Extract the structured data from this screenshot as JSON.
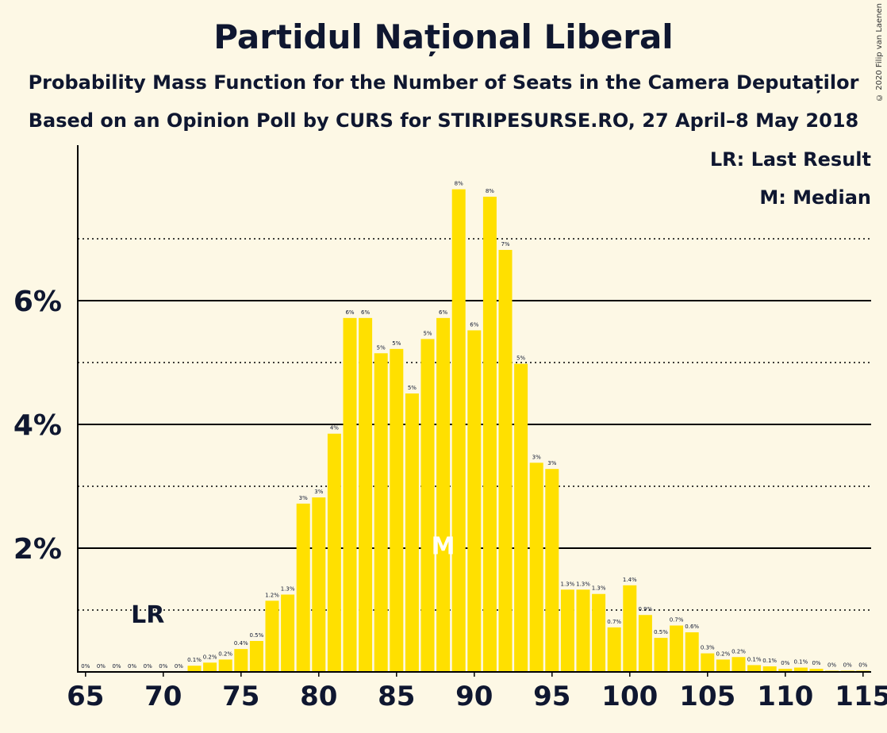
{
  "title": "Partidul Național Liberal",
  "subtitle": "Probability Mass Function for the Number of Seats in the Camera Deputaților",
  "subtitle2": "Based on an Opinion Poll by CURS for STIRIPESURSE.RO, 27 April–8 May 2018",
  "copyright": "© 2020 Filip van Laenen",
  "legend": {
    "lr": "LR: Last Result",
    "m": "M: Median"
  },
  "colors": {
    "bar": "#ffe000",
    "text": "#0f1730",
    "background": "#fdf8e5"
  },
  "chart_data": {
    "type": "bar",
    "x": [
      65,
      66,
      67,
      68,
      69,
      70,
      71,
      72,
      73,
      74,
      75,
      76,
      77,
      78,
      79,
      80,
      81,
      82,
      83,
      84,
      85,
      86,
      87,
      88,
      89,
      90,
      91,
      92,
      93,
      94,
      95,
      96,
      97,
      98,
      99,
      100,
      101,
      102,
      103,
      104,
      105,
      106,
      107,
      108,
      109,
      110,
      111,
      112,
      113,
      114,
      115
    ],
    "values": [
      0,
      0,
      0,
      0,
      0,
      0,
      0,
      0.1,
      0.15,
      0.2,
      0.37,
      0.5,
      1.15,
      1.25,
      2.72,
      2.82,
      3.85,
      5.72,
      5.72,
      5.15,
      5.22,
      4.5,
      5.38,
      5.72,
      7.8,
      5.52,
      7.68,
      6.82,
      4.98,
      3.38,
      3.28,
      1.33,
      1.33,
      1.26,
      0.72,
      1.4,
      0.92,
      0.55,
      0.75,
      0.64,
      0.3,
      0.2,
      0.24,
      0.11,
      0.09,
      0.05,
      0.07,
      0.05,
      0.02,
      0.02,
      0.02
    ],
    "data_labels": [
      "0%",
      "0%",
      "0%",
      "0%",
      "0%",
      "0%",
      "0%",
      "0.1%",
      "0.2%",
      "0.2%",
      "0.4%",
      "0.5%",
      "1.2%",
      "1.3%",
      "3%",
      "3%",
      "4%",
      "6%",
      "6%",
      "5%",
      "5%",
      "5%",
      "5%",
      "6%",
      "8%",
      "6%",
      "8%",
      "7%",
      "5%",
      "3%",
      "3%",
      "1.3%",
      "1.3%",
      "1.3%",
      "0.7%",
      "1.4%",
      "0.9%",
      "0.5%",
      "0.7%",
      "0.6%",
      "0.3%",
      "0.2%",
      "0.2%",
      "0.1%",
      "0.1%",
      "0%",
      "0.1%",
      "0%",
      "0%",
      "0%",
      "0%"
    ],
    "xlim": [
      65,
      115
    ],
    "x_ticks": [
      65,
      70,
      75,
      80,
      85,
      90,
      95,
      100,
      105,
      110,
      115
    ],
    "ylim": [
      0,
      8.5
    ],
    "y_ticks": [
      2,
      4,
      6
    ],
    "y_tick_labels": [
      "2%",
      "4%",
      "6%"
    ],
    "minor_gridlines": [
      1,
      3,
      5,
      7
    ],
    "last_result": 69,
    "last_result_label": "LR",
    "median": 88,
    "median_label": "M",
    "legend_position": "top-right"
  }
}
